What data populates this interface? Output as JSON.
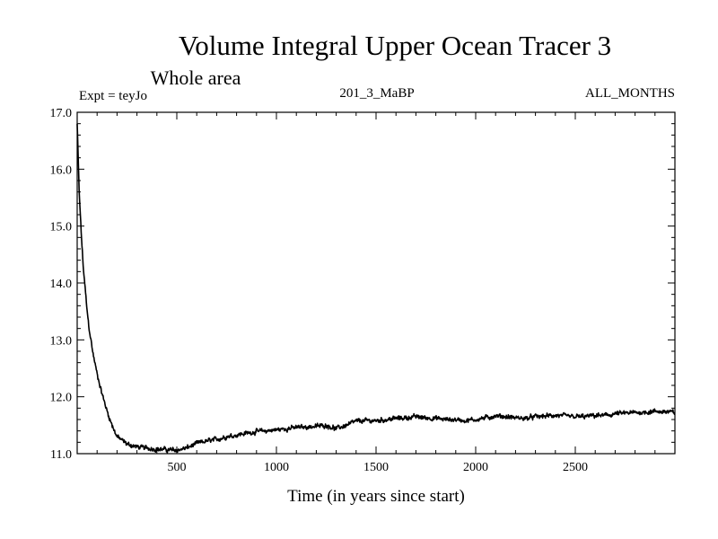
{
  "chart_data": {
    "type": "line",
    "title": "Volume Integral Upper Ocean Tracer 3",
    "subtitle": "Whole area",
    "experiment": "Expt = teyJo",
    "run_label": "201_3_MaBP",
    "period": "ALL_MONTHS",
    "xlabel": "Time (in years since start)",
    "ylabel": "",
    "xlim": [
      0,
      3000
    ],
    "ylim": [
      11.0,
      17.0
    ],
    "x_ticks": [
      500,
      1000,
      1500,
      2000,
      2500
    ],
    "x_tick_labels": [
      "500",
      "1000",
      "1500",
      "2000",
      "2500"
    ],
    "y_ticks": [
      11,
      12,
      13,
      14,
      15,
      16,
      17
    ],
    "y_tick_labels": [
      "11.0",
      "12.0",
      "13.0",
      "14.0",
      "15.0",
      "16.0",
      "17.0"
    ],
    "series": [
      {
        "name": "Upper Ocean Tracer 3",
        "x": [
          0,
          10,
          20,
          30,
          40,
          50,
          60,
          80,
          100,
          125,
          150,
          175,
          200,
          250,
          300,
          350,
          400,
          450,
          500,
          550,
          600,
          650,
          700,
          750,
          800,
          850,
          900,
          950,
          1000,
          1050,
          1100,
          1150,
          1200,
          1250,
          1300,
          1350,
          1400,
          1450,
          1500,
          1550,
          1600,
          1650,
          1700,
          1750,
          1800,
          1850,
          1900,
          1950,
          2000,
          2050,
          2100,
          2150,
          2200,
          2250,
          2300,
          2350,
          2400,
          2450,
          2500,
          2550,
          2600,
          2650,
          2700,
          2750,
          2800,
          2850,
          2900,
          2950,
          3000
        ],
        "values": [
          16.8,
          15.6,
          14.9,
          14.3,
          13.9,
          13.5,
          13.2,
          12.75,
          12.4,
          12.05,
          11.75,
          11.5,
          11.3,
          11.17,
          11.12,
          11.1,
          11.08,
          11.07,
          11.06,
          11.1,
          11.18,
          11.22,
          11.25,
          11.3,
          11.33,
          11.36,
          11.39,
          11.4,
          11.42,
          11.44,
          11.46,
          11.47,
          11.48,
          11.5,
          11.44,
          11.5,
          11.57,
          11.58,
          11.58,
          11.6,
          11.62,
          11.63,
          11.65,
          11.63,
          11.62,
          11.6,
          11.6,
          11.58,
          11.6,
          11.63,
          11.66,
          11.65,
          11.63,
          11.62,
          11.65,
          11.66,
          11.67,
          11.66,
          11.65,
          11.65,
          11.67,
          11.67,
          11.7,
          11.71,
          11.72,
          11.73,
          11.74,
          11.74,
          11.72
        ]
      }
    ]
  }
}
